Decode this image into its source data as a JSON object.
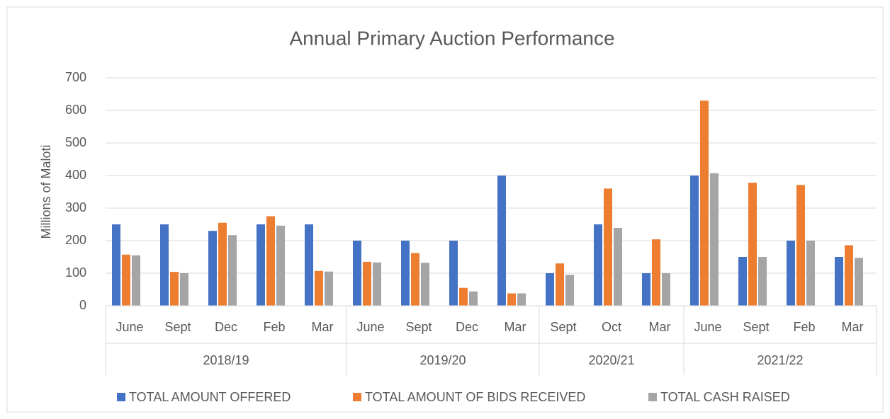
{
  "chart_data": {
    "type": "bar",
    "title": "Annual Primary Auction Performance",
    "y_label": "Millions of Maloti",
    "categories": [
      "June",
      "Sept",
      "Dec",
      "Feb",
      "Mar",
      "June",
      "Sept",
      "Dec",
      "Mar",
      "Sept",
      "Oct",
      "Mar",
      "June",
      "Sept",
      "Feb",
      "Mar"
    ],
    "groups": [
      {
        "label": "2018/19",
        "size": 5
      },
      {
        "label": "2019/20",
        "size": 4
      },
      {
        "label": "2020/21",
        "size": 3
      },
      {
        "label": "2021/22",
        "size": 4
      }
    ],
    "series": [
      {
        "name": "TOTAL AMOUNT OFFERED",
        "color": "#4472c4",
        "values": [
          250,
          250,
          230,
          250,
          250,
          200,
          200,
          200,
          400,
          100,
          250,
          100,
          400,
          150,
          200,
          150
        ]
      },
      {
        "name": "TOTAL AMOUNT OF BIDS RECEIVED",
        "color": "#ed7d31",
        "values": [
          157,
          104,
          255,
          275,
          107,
          135,
          162,
          55,
          38,
          130,
          360,
          204,
          630,
          378,
          371,
          186
        ]
      },
      {
        "name": "TOTAL CASH RAISED",
        "color": "#a5a5a5",
        "values": [
          155,
          100,
          217,
          246,
          105,
          133,
          132,
          44,
          38,
          95,
          239,
          100,
          407,
          150,
          200,
          147
        ]
      }
    ],
    "ylim": [
      0,
      700
    ],
    "yticks": [
      0,
      100,
      200,
      300,
      400,
      500,
      600,
      700
    ],
    "grid": true,
    "legend": "bottom"
  }
}
